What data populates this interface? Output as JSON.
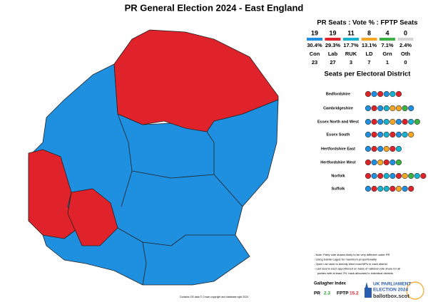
{
  "title": "PR General Election 2024 - East England",
  "party_table": {
    "heading": "PR Seats : Vote % : FPTP Seats",
    "parties": [
      {
        "name": "Con",
        "pr_seats": "19",
        "vote": "30.4%",
        "fptp_seats": "23",
        "color": "#1f8fe0"
      },
      {
        "name": "Lab",
        "pr_seats": "19",
        "vote": "29.3%",
        "fptp_seats": "27",
        "color": "#e0222a"
      },
      {
        "name": "RUK",
        "pr_seats": "11",
        "vote": "17.7%",
        "fptp_seats": "3",
        "color": "#16b3cf"
      },
      {
        "name": "LD",
        "pr_seats": "8",
        "vote": "13.1%",
        "fptp_seats": "7",
        "color": "#f5a623"
      },
      {
        "name": "Grn",
        "pr_seats": "4",
        "vote": "7.1%",
        "fptp_seats": "1",
        "color": "#3cb043"
      },
      {
        "name": "Oth",
        "pr_seats": "0",
        "vote": "2.4%",
        "fptp_seats": "0",
        "color": "#d4d4d4"
      }
    ]
  },
  "districts": {
    "heading": "Seats per Electoral District",
    "rows": [
      {
        "name": "Bedfordshire",
        "seats": [
          "Lab",
          "Con",
          "Lab",
          "Con",
          "RUK",
          "Lab"
        ]
      },
      {
        "name": "Cambridgeshire",
        "seats": [
          "Con",
          "Lab",
          "Con",
          "RUK",
          "LD",
          "LD",
          "Grn",
          "Con"
        ]
      },
      {
        "name": "Essex North and West",
        "seats": [
          "Con",
          "Lab",
          "Con",
          "RUK",
          "LD",
          "Con",
          "Lab",
          "RUK",
          "Grn"
        ]
      },
      {
        "name": "Essex South",
        "seats": [
          "Con",
          "Lab",
          "Con",
          "RUK",
          "Lab",
          "Con",
          "RUK",
          "LD"
        ]
      },
      {
        "name": "Hertfordshire East",
        "seats": [
          "Con",
          "Lab",
          "Con",
          "LD",
          "Lab",
          "RUK"
        ]
      },
      {
        "name": "Hertfordshire West",
        "seats": [
          "Lab",
          "Con",
          "LD",
          "Lab",
          "Con",
          "Grn"
        ]
      },
      {
        "name": "Norfolk",
        "seats": [
          "Lab",
          "Con",
          "Lab",
          "RUK",
          "Con",
          "Lab",
          "LD",
          "Grn",
          "RUK",
          "Lab"
        ]
      },
      {
        "name": "Suffolk",
        "seats": [
          "Con",
          "Lab",
          "RUK",
          "RUK",
          "Lab",
          "LD",
          "Con",
          "Lab"
        ]
      }
    ]
  },
  "notes": [
    "- Note: Party vote shares likely to be very different under PR",
    "- Using Sainte-Laguë for maximum proportionality",
    "- Open List used to directly elect most MPs in each district",
    "- Last seat in each apportioned on basis of national vote share for all",
    "parties with at least 2%, back-allocated to individual districts"
  ],
  "gallagher": {
    "heading": "Gallagher Index",
    "pr_label": "PR",
    "pr_value": "2.3",
    "fptp_label": "FPTP",
    "fptp_value": "15.2"
  },
  "credit": "Contains OS data © Crown copyright and database right 2024",
  "logo": {
    "line1": "UK PARLIAMENT",
    "line2": "ELECTION 2024",
    "site": "ballotbox.scot"
  }
}
